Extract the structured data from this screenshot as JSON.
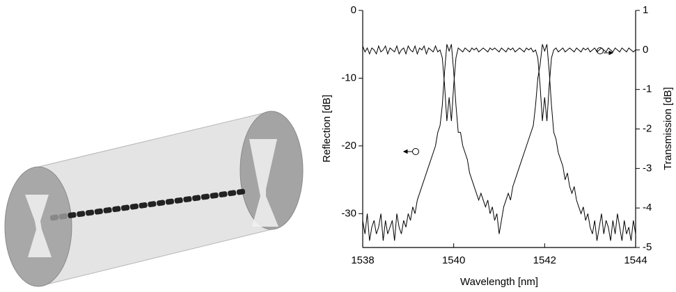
{
  "chart_data": {
    "type": "line",
    "xlabel": "Wavelength [nm]",
    "ylabel": "Reflection [dB]",
    "y2label": "Transmission [dB]",
    "xlim": [
      1538,
      1544
    ],
    "ylim": [
      -35,
      0
    ],
    "y2lim": [
      -5,
      1
    ],
    "xticks": [
      1538,
      1540,
      1542,
      1544
    ],
    "yticks": [
      0,
      -10,
      -20,
      -30
    ],
    "y2ticks": [
      1,
      0,
      -1,
      -2,
      -3,
      -4,
      -5
    ],
    "x": [
      1538,
      1538.05,
      1538.1,
      1538.15,
      1538.2,
      1538.25,
      1538.3,
      1538.35,
      1538.4,
      1538.45,
      1538.5,
      1538.55,
      1538.6,
      1538.65,
      1538.7,
      1538.75,
      1538.8,
      1538.85,
      1538.9,
      1538.95,
      1539,
      1539.05,
      1539.1,
      1539.15,
      1539.2,
      1539.25,
      1539.3,
      1539.35,
      1539.4,
      1539.45,
      1539.5,
      1539.55,
      1539.6,
      1539.65,
      1539.7,
      1539.75,
      1539.8,
      1539.85,
      1539.9,
      1539.95,
      1540,
      1540.05,
      1540.1,
      1540.15,
      1540.2,
      1540.25,
      1540.3,
      1540.35,
      1540.4,
      1540.45,
      1540.5,
      1540.55,
      1540.6,
      1540.65,
      1540.7,
      1540.75,
      1540.8,
      1540.85,
      1540.9,
      1540.95,
      1541,
      1541.05,
      1541.1,
      1541.15,
      1541.2,
      1541.25,
      1541.3,
      1541.35,
      1541.4,
      1541.45,
      1541.5,
      1541.55,
      1541.6,
      1541.65,
      1541.7,
      1541.75,
      1541.8,
      1541.85,
      1541.9,
      1541.95,
      1542,
      1542.05,
      1542.1,
      1542.15,
      1542.2,
      1542.25,
      1542.3,
      1542.35,
      1542.4,
      1542.45,
      1542.5,
      1542.55,
      1542.6,
      1542.65,
      1542.7,
      1542.75,
      1542.8,
      1542.85,
      1542.9,
      1542.95,
      1543,
      1543.05,
      1543.1,
      1543.15,
      1543.2,
      1543.25,
      1543.3,
      1543.35,
      1543.4,
      1543.45,
      1543.5,
      1543.55,
      1543.6,
      1543.65,
      1543.7,
      1543.75,
      1543.8,
      1543.85,
      1543.9,
      1543.95,
      1544
    ],
    "series": [
      {
        "color": "#000000",
        "values": [
          -31,
          -33,
          -30,
          -34,
          -32,
          -31,
          -33,
          -32,
          -30,
          -34,
          -31,
          -33,
          -32,
          -31,
          -34,
          -30,
          -32,
          -33,
          -31,
          -32,
          -30,
          -31,
          -29,
          -30,
          -28,
          -27,
          -26,
          -25,
          -24,
          -23,
          -22,
          -21,
          -20,
          -18,
          -17,
          -14,
          -9,
          -5,
          -6,
          -5,
          -9,
          -14,
          -18,
          -18,
          -20,
          -21,
          -22,
          -24,
          -25,
          -26,
          -27,
          -28,
          -27,
          -28,
          -29,
          -28,
          -30,
          -29,
          -31,
          -30,
          -33,
          -31,
          -29,
          -28,
          -27,
          -28,
          -26,
          -25,
          -24,
          -23,
          -22,
          -21,
          -20,
          -19,
          -18,
          -17,
          -14,
          -10,
          -8,
          -5,
          -6,
          -5,
          -9,
          -14,
          -18,
          -19,
          -21,
          -22,
          -23,
          -25,
          -24,
          -26,
          -27,
          -26,
          -28,
          -29,
          -30,
          -29,
          -31,
          -30,
          -32,
          -33,
          -31,
          -34,
          -32,
          -30,
          -33,
          -31,
          -32,
          -34,
          -31,
          -33,
          -30,
          -32,
          -34,
          -31,
          -33,
          -32,
          -34,
          -31,
          -33
        ]
      },
      {
        "color": "#000000",
        "axis": "y2",
        "values": [
          0.1,
          -0.05,
          0.05,
          -0.1,
          0.05,
          0,
          -0.1,
          0.1,
          -0.05,
          0,
          0.1,
          -0.1,
          0.05,
          0,
          -0.05,
          0.1,
          -0.1,
          0,
          0.05,
          -0.1,
          0.1,
          0,
          -0.05,
          0.1,
          -0.1,
          0.05,
          0,
          0.1,
          -0.1,
          0.05,
          0,
          -0.05,
          0.1,
          -0.05,
          0,
          -0.2,
          -0.9,
          -1.8,
          -1.2,
          -1.8,
          -0.9,
          -0.2,
          0.05,
          0,
          -0.05,
          0.05,
          0,
          -0.05,
          0.05,
          0,
          0.05,
          -0.05,
          0,
          0.05,
          0,
          -0.05,
          0.05,
          0,
          0.05,
          0,
          -0.05,
          0.05,
          0,
          -0.05,
          0.05,
          0,
          0.05,
          -0.05,
          0,
          0.05,
          0,
          -0.05,
          0.05,
          0,
          0.05,
          -0.05,
          0,
          -0.2,
          -0.9,
          -1.8,
          -1.2,
          -1.8,
          -0.9,
          -0.2,
          0,
          0.05,
          -0.05,
          0,
          0.05,
          -0.05,
          0,
          0.05,
          0,
          -0.05,
          0.05,
          0,
          -0.05,
          0.05,
          0,
          0.05,
          -0.05,
          0,
          0.05,
          -0.05,
          0,
          0.05,
          0,
          -0.05,
          0.05,
          0,
          -0.05,
          0.05,
          0,
          -0.05,
          0.05,
          0,
          -0.05,
          0.05,
          0,
          -0.05,
          0
        ]
      }
    ]
  }
}
